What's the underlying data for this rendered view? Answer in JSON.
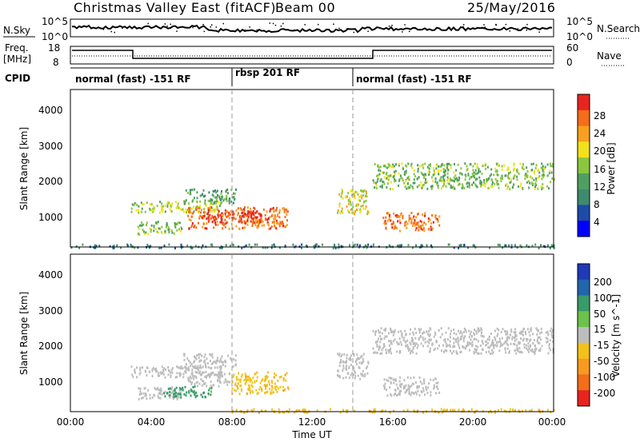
{
  "header": {
    "title": "Christmas Valley East (fitACF)",
    "beam": "Beam 00",
    "date": "25/May/2016"
  },
  "noise_panel": {
    "left_label": "N.Sky",
    "right_label": "N.Search",
    "left_ticks": [
      "10^5",
      "10^0"
    ],
    "right_ticks": [
      "10^5",
      "10^0"
    ]
  },
  "freq_panel": {
    "left_label_line1": "Freq.",
    "left_label_line2": "[MHz]",
    "right_label": "Nave",
    "left_ticks": [
      "18",
      "8"
    ],
    "right_ticks": [
      "60",
      "0"
    ]
  },
  "cpid": {
    "label": "CPID",
    "segments": [
      "normal (fast) -151 RF",
      "rbsp 201 RF",
      "normal (fast) -151 RF"
    ]
  },
  "colors": {
    "power_scale": [
      "#0000ff",
      "#1f4aa8",
      "#3e8a6f",
      "#4fa060",
      "#8cc63f",
      "#f2e21c",
      "#f7a01f",
      "#f46d1a",
      "#e8241f"
    ],
    "velocity_scale": [
      "#1f3ab8",
      "#2166ac",
      "#3a9a6a",
      "#6cc24a",
      "#bdbdbd",
      "#f2c21c",
      "#f79a1f",
      "#f46d1a",
      "#e8241f"
    ]
  },
  "chart_data": [
    {
      "type": "heatmap",
      "title": "",
      "ylabel": "Slant Range [km]",
      "xlabel": "",
      "ylim": [
        180,
        4500
      ],
      "xlim": [
        "00:00",
        "24:00"
      ],
      "y_ticks": [
        "1000",
        "2000",
        "3000",
        "4000"
      ],
      "colorbar": {
        "label": "Power [dB]",
        "ticks": [
          "4",
          "8",
          "12",
          "16",
          "20",
          "24",
          "28"
        ],
        "range": [
          0,
          30
        ]
      },
      "regions": [
        {
          "t0": 3.0,
          "t1": 7.5,
          "r0": 1150,
          "r1": 1450,
          "value": 16
        },
        {
          "t0": 5.6,
          "t1": 8.2,
          "r0": 1400,
          "r1": 1800,
          "value": 12
        },
        {
          "t0": 3.3,
          "t1": 5.5,
          "r0": 550,
          "r1": 900,
          "value": 14
        },
        {
          "t0": 5.8,
          "t1": 10.8,
          "r0": 700,
          "r1": 1300,
          "value": 24
        },
        {
          "t0": 6.5,
          "t1": 9.5,
          "r0": 850,
          "r1": 1200,
          "value": 28
        },
        {
          "t0": 13.2,
          "t1": 14.8,
          "r0": 1100,
          "r1": 1800,
          "value": 18
        },
        {
          "t0": 15.5,
          "t1": 18.3,
          "r0": 650,
          "r1": 1150,
          "value": 24
        },
        {
          "t0": 15.0,
          "t1": 24.0,
          "r0": 1800,
          "r1": 2500,
          "value": 14
        },
        {
          "t0": 0.0,
          "t1": 24.0,
          "r0": 180,
          "r1": 280,
          "value": 8
        }
      ]
    },
    {
      "type": "heatmap",
      "title": "",
      "ylabel": "Slant Range [km]",
      "xlabel": "Time UT",
      "ylim": [
        180,
        4500
      ],
      "xlim": [
        "00:00",
        "24:00"
      ],
      "x_ticks": [
        "00:00",
        "04:00",
        "08:00",
        "12:00",
        "16:00",
        "20:00",
        "00:00"
      ],
      "y_ticks": [
        "1000",
        "2000",
        "3000",
        "4000"
      ],
      "colorbar": {
        "label": "Velocity [m s^-1]",
        "ticks": [
          "200",
          "100",
          "50",
          "15",
          "-15",
          "-50",
          "-100",
          "-200"
        ],
        "range": [
          -250,
          250
        ]
      },
      "regions": [
        {
          "t0": 3.0,
          "t1": 7.5,
          "r0": 1150,
          "r1": 1450,
          "value": 0
        },
        {
          "t0": 5.6,
          "t1": 8.2,
          "r0": 1400,
          "r1": 1800,
          "value": 0
        },
        {
          "t0": 3.3,
          "t1": 5.5,
          "r0": 550,
          "r1": 900,
          "value": 0
        },
        {
          "t0": 4.5,
          "t1": 7.0,
          "r0": 600,
          "r1": 900,
          "value": 40
        },
        {
          "t0": 5.8,
          "t1": 8.0,
          "r0": 900,
          "r1": 1300,
          "value": 0
        },
        {
          "t0": 8.0,
          "t1": 10.8,
          "r0": 700,
          "r1": 1300,
          "value": -40
        },
        {
          "t0": 13.2,
          "t1": 14.8,
          "r0": 1100,
          "r1": 1800,
          "value": 0
        },
        {
          "t0": 15.5,
          "t1": 18.3,
          "r0": 650,
          "r1": 1150,
          "value": 0
        },
        {
          "t0": 15.0,
          "t1": 24.0,
          "r0": 1800,
          "r1": 2500,
          "value": 0
        },
        {
          "t0": 8.0,
          "t1": 24.0,
          "r0": 180,
          "r1": 280,
          "value": -40
        }
      ]
    }
  ]
}
